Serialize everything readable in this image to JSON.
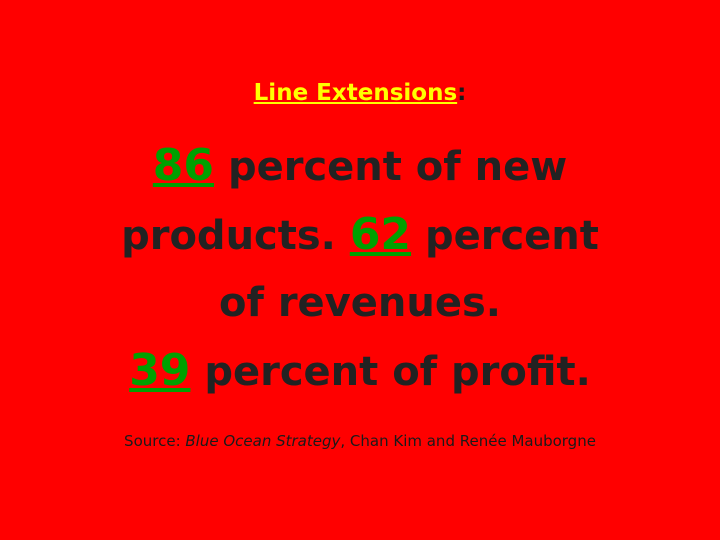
{
  "heading": {
    "title": "Line Extensions",
    "suffix": ":"
  },
  "body": {
    "lines": [
      [
        {
          "number": 86
        },
        {
          "text": " percent of new"
        }
      ],
      [
        {
          "text": "products. "
        },
        {
          "number": 62
        },
        {
          "text": " percent"
        }
      ],
      [
        {
          "text": "of revenues."
        }
      ],
      [
        {
          "number": 39
        },
        {
          "text": " percent of profit."
        }
      ]
    ]
  },
  "source": {
    "prefix": "Source: ",
    "book": "Blue Ocean Strategy",
    "authors": ", Chan Kim and Renée Mauborgne"
  }
}
